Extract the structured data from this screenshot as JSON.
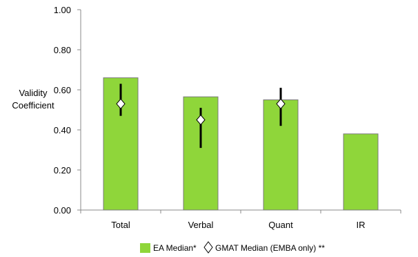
{
  "chart_data": {
    "type": "bar",
    "ylabel": [
      "Validity",
      "Coefficient"
    ],
    "ylim": [
      0,
      1.0
    ],
    "ytick_labels": [
      "0.00",
      "0.20",
      "0.40",
      "0.60",
      "0.80",
      "1.00"
    ],
    "categories": [
      "Total",
      "Verbal",
      "Quant",
      "IR"
    ],
    "series": [
      {
        "name": "EA Median*",
        "type": "bar",
        "values": [
          0.66,
          0.565,
          0.55,
          0.38
        ],
        "color": "#8fd63a",
        "border_color": "#7a7a7a"
      },
      {
        "name": "GMAT Median (EMBA only) **",
        "type": "scatter",
        "marker": "diamond",
        "values": [
          0.53,
          0.45,
          0.53,
          null
        ],
        "error_low": [
          0.47,
          0.31,
          0.42,
          null
        ],
        "error_high": [
          0.63,
          0.51,
          0.61,
          null
        ]
      }
    ],
    "grid": false,
    "legend_position": "bottom"
  }
}
